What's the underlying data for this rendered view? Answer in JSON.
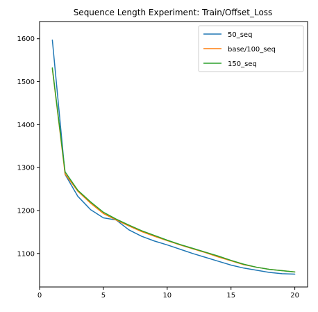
{
  "chart_data": {
    "type": "line",
    "title": "Sequence Length Experiment: Train/Offset_Loss",
    "xlabel": "",
    "ylabel": "",
    "xlim": [
      0,
      21
    ],
    "ylim": [
      1022,
      1640
    ],
    "xticks": [
      0,
      5,
      10,
      15,
      20
    ],
    "yticks": [
      1100,
      1200,
      1300,
      1400,
      1500,
      1600
    ],
    "grid": false,
    "legend": "top-right",
    "x": [
      1,
      2,
      3,
      4,
      5,
      6,
      7,
      8,
      9,
      10,
      11,
      12,
      13,
      14,
      15,
      16,
      17,
      18,
      19,
      20
    ],
    "series": [
      {
        "name": "50_seq",
        "color": "#1f77b4",
        "values": [
          1597,
          1284,
          1233,
          1202,
          1183,
          1178,
          1155,
          1140,
          1129,
          1120,
          1110,
          1100,
          1091,
          1082,
          1073,
          1066,
          1061,
          1056,
          1053,
          1052
        ]
      },
      {
        "name": "base/100_seq",
        "color": "#ff7f0e",
        "values": [
          1530,
          1285,
          1245,
          1217,
          1193,
          1178,
          1164,
          1151,
          1140,
          1130,
          1120,
          1111,
          1102,
          1092,
          1083,
          1074,
          1068,
          1063,
          1060,
          1057
        ]
      },
      {
        "name": "150_seq",
        "color": "#2ca02c",
        "values": [
          1532,
          1290,
          1247,
          1220,
          1196,
          1180,
          1166,
          1153,
          1142,
          1131,
          1121,
          1112,
          1103,
          1094,
          1084,
          1075,
          1068,
          1063,
          1060,
          1057
        ]
      }
    ]
  }
}
